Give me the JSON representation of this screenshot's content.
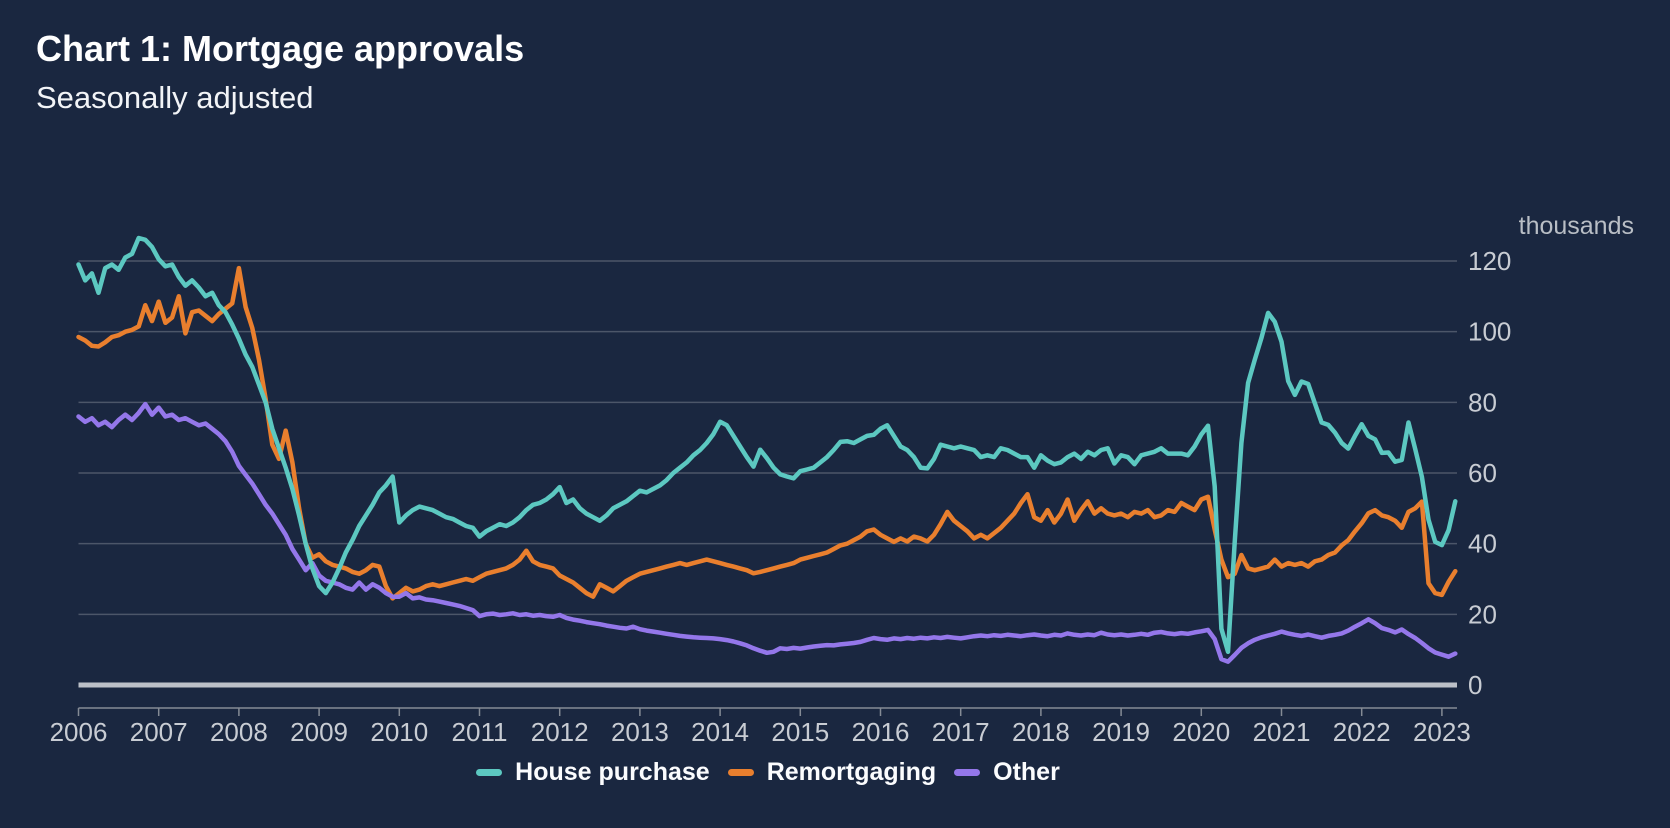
{
  "header": {
    "title": "Chart 1: Mortgage approvals",
    "subtitle": "Seasonally adjusted"
  },
  "colors": {
    "background": "#1A2740",
    "gridline": "#4C5669",
    "zero_line": "#BCC0C8",
    "axis_line": "#858B95",
    "tick_text": "#C8CCD3",
    "unit_text": "#B9BEC5",
    "title_text": "#FFFFFF"
  },
  "chart_data": {
    "type": "line",
    "title": "Chart 1: Mortgage approvals",
    "subtitle": "Seasonally adjusted",
    "unit_label": "thousands",
    "frequency": "monthly",
    "x_start": "2006-01",
    "x_end": "2023-03",
    "x_tick_labels": [
      "2006",
      "2007",
      "2008",
      "2009",
      "2010",
      "2011",
      "2012",
      "2013",
      "2014",
      "2015",
      "2016",
      "2017",
      "2018",
      "2019",
      "2020",
      "2021",
      "2022",
      "2023"
    ],
    "y_ticks": [
      0,
      20,
      40,
      60,
      80,
      100,
      120
    ],
    "ylim": [
      0,
      120
    ],
    "grid": "horizontal",
    "legend_position": "bottom-center",
    "series": [
      {
        "name": "House purchase",
        "color": "#5CC8C1",
        "values": [
          119,
          114.5,
          116.5,
          111,
          118,
          119,
          117.5,
          121,
          122,
          126.5,
          126,
          124,
          120.5,
          118.5,
          119,
          115.5,
          113,
          114.5,
          112.5,
          110,
          111,
          107.5,
          105.5,
          102,
          98,
          93.5,
          90,
          85,
          80,
          72.5,
          67,
          61.5,
          55.5,
          48,
          40,
          33,
          28,
          26,
          29,
          33,
          37.5,
          41,
          45,
          48,
          51,
          54.5,
          56.5,
          59,
          46,
          48,
          49.5,
          50.5,
          50,
          49.5,
          48.5,
          47.5,
          47,
          46,
          45,
          44.5,
          42,
          43.5,
          44.5,
          45.5,
          45,
          46,
          47.5,
          49.5,
          51,
          51.5,
          52.5,
          54,
          56,
          51.5,
          52.5,
          50,
          48.5,
          47.5,
          46.5,
          48,
          50,
          51,
          52,
          53.5,
          55,
          54.5,
          55.5,
          56.5,
          58,
          60,
          61.5,
          63,
          65,
          66.5,
          68.5,
          71,
          74.5,
          73.5,
          70.5,
          67.5,
          64.5,
          61.8,
          66.6,
          64.2,
          61.5,
          59.6,
          59,
          58.5,
          60.5,
          61,
          61.5,
          63,
          64.5,
          66.5,
          68.8,
          69,
          68.5,
          69.5,
          70.5,
          70.8,
          72.5,
          73.5,
          70.5,
          67.5,
          66.5,
          64.5,
          61.5,
          61.3,
          64,
          68,
          67.5,
          67,
          67.5,
          67,
          66.5,
          64.5,
          65,
          64.5,
          67,
          66.5,
          65.5,
          64.5,
          64.5,
          61.5,
          65,
          63.5,
          62.5,
          63,
          64.5,
          65.5,
          64,
          66,
          65,
          66.5,
          67,
          62.7,
          65,
          64.5,
          62.5,
          65,
          65.5,
          66,
          67,
          65.5,
          65.5,
          65.5,
          65,
          67.5,
          70.9,
          73.4,
          56.2,
          15.9,
          9.4,
          40.4,
          68.5,
          85.5,
          92.1,
          98.3,
          105.3,
          102.8,
          97.2,
          86,
          82.1,
          85.9,
          85.2,
          79.7,
          74.3,
          73.6,
          71.4,
          68.5,
          66.9,
          70.5,
          73.8,
          70.5,
          69.5,
          65.7,
          65.8,
          63.2,
          63.7,
          74.3,
          66.8,
          58.9,
          46.8,
          40.5,
          39.6,
          43.8,
          52
        ]
      },
      {
        "name": "Remortgaging",
        "color": "#E97F2E",
        "values": [
          98.5,
          97.5,
          96,
          95.8,
          97,
          98.5,
          99,
          100,
          100.5,
          101.5,
          107.5,
          103,
          108.5,
          102.5,
          104,
          110,
          99.5,
          105.5,
          106,
          104.5,
          103,
          105,
          106.5,
          108,
          118,
          107,
          101,
          92,
          81,
          68,
          64,
          72,
          63,
          50,
          40,
          36,
          37,
          35,
          34,
          33.5,
          33,
          32,
          31.5,
          32.5,
          34,
          33.5,
          28,
          24.5,
          26,
          27.5,
          26.5,
          27,
          28,
          28.5,
          28,
          28.5,
          29,
          29.5,
          30,
          29.5,
          30.5,
          31.5,
          32,
          32.5,
          33,
          34,
          35.5,
          38,
          35,
          34,
          33.5,
          33,
          31,
          30,
          29,
          27.5,
          26,
          25,
          28.5,
          27.5,
          26.5,
          28,
          29.5,
          30.5,
          31.5,
          32,
          32.5,
          33,
          33.5,
          34,
          34.5,
          34,
          34.5,
          35,
          35.5,
          35,
          34.5,
          34,
          33.5,
          33,
          32.5,
          31.6,
          32,
          32.5,
          33,
          33.5,
          34,
          34.5,
          35.5,
          36,
          36.5,
          37,
          37.5,
          38.5,
          39.5,
          40,
          41,
          42,
          43.5,
          44,
          42.5,
          41.5,
          40.5,
          41.5,
          40.6,
          42,
          41.5,
          40.6,
          42.5,
          45.5,
          49,
          46.5,
          45,
          43.5,
          41.5,
          42.5,
          41.5,
          43,
          44.5,
          46.5,
          48.5,
          51.5,
          54,
          47.5,
          46.5,
          49.5,
          46,
          48.5,
          52.5,
          46.5,
          49.5,
          52,
          48.5,
          50,
          48.5,
          48,
          48.5,
          47.5,
          49,
          48.5,
          49.5,
          47.5,
          48,
          49.5,
          49,
          51.5,
          50.5,
          49.5,
          52.5,
          53.3,
          44,
          35.5,
          30.5,
          31.5,
          36.8,
          33,
          32.5,
          33,
          33.5,
          35.5,
          33.5,
          34.5,
          34,
          34.5,
          33.5,
          35,
          35.5,
          36.8,
          37.5,
          39.5,
          41,
          43.5,
          45.8,
          48.6,
          49.5,
          48,
          47.5,
          46.5,
          44.5,
          49,
          50,
          51.9,
          28.8,
          26,
          25.5,
          29.2,
          32.2
        ]
      },
      {
        "name": "Other",
        "color": "#9477EA",
        "values": [
          76,
          74.5,
          75.5,
          73.5,
          74.5,
          73,
          75,
          76.5,
          75,
          77,
          79.5,
          76.5,
          78.5,
          76,
          76.5,
          75,
          75.5,
          74.5,
          73.5,
          74,
          72.5,
          71,
          69,
          66,
          62,
          59.5,
          57,
          54,
          51,
          48.5,
          45.5,
          42.5,
          38.5,
          35.5,
          32.5,
          34.5,
          31,
          29.5,
          29,
          28.5,
          27.5,
          27,
          29,
          27,
          28.5,
          27.5,
          26,
          25,
          25,
          26,
          24.5,
          24.8,
          24.2,
          24,
          23.6,
          23.2,
          22.8,
          22.4,
          21.8,
          21.2,
          19.5,
          20,
          20.2,
          19.8,
          20,
          20.3,
          19.8,
          20,
          19.6,
          19.8,
          19.5,
          19.3,
          19.8,
          19,
          18.5,
          18.2,
          17.8,
          17.5,
          17.2,
          16.8,
          16.5,
          16.2,
          16,
          16.5,
          15.8,
          15.4,
          15.1,
          14.8,
          14.5,
          14.2,
          13.9,
          13.7,
          13.5,
          13.4,
          13.3,
          13.2,
          13,
          12.7,
          12.3,
          11.8,
          11.2,
          10.4,
          9.7,
          9.1,
          9.4,
          10.4,
          10.2,
          10.5,
          10.3,
          10.6,
          10.9,
          11.1,
          11.3,
          11.2,
          11.5,
          11.7,
          11.9,
          12.2,
          12.8,
          13.3,
          13,
          12.8,
          13.2,
          13,
          13.3,
          13.1,
          13.4,
          13.2,
          13.5,
          13.3,
          13.6,
          13.4,
          13.2,
          13.5,
          13.8,
          14,
          13.8,
          14.1,
          13.9,
          14.2,
          14,
          13.8,
          14.1,
          14.3,
          14,
          13.8,
          14.2,
          14,
          14.6,
          14.2,
          14,
          14.3,
          14.1,
          14.8,
          14.3,
          14.1,
          14.3,
          14,
          14.2,
          14.5,
          14.2,
          14.8,
          15,
          14.6,
          14.4,
          14.7,
          14.5,
          14.9,
          15.2,
          15.6,
          13,
          7.3,
          6.6,
          8.5,
          10.5,
          11.8,
          12.8,
          13.5,
          14,
          14.5,
          15.1,
          14.6,
          14.2,
          13.9,
          14.3,
          13.8,
          13.4,
          13.9,
          14.2,
          14.6,
          15.4,
          16.5,
          17.5,
          18.6,
          17.5,
          16.1,
          15.6,
          14.9,
          15.7,
          14.4,
          13.3,
          11.9,
          10.4,
          9.2,
          8.6,
          8,
          8.9
        ]
      }
    ]
  }
}
